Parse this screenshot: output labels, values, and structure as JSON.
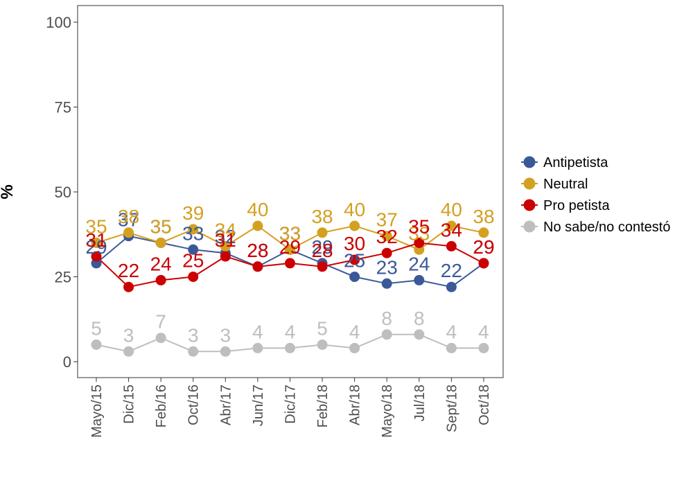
{
  "chart_data": {
    "type": "line",
    "title": "",
    "xlabel": "",
    "ylabel": "%",
    "ylim": [
      0,
      100
    ],
    "yticks": [
      0,
      25,
      50,
      75,
      100
    ],
    "grid": false,
    "legend_placement": "right",
    "categories": [
      "Mayo/15",
      "Dic/15",
      "Feb/16",
      "Oct/16",
      "Abr/17",
      "Jun/17",
      "Dic/17",
      "Feb/18",
      "Abr/18",
      "Mayo/18",
      "Jul/18",
      "Sept/18",
      "Oct/18"
    ],
    "series": [
      {
        "name": "Antipetista",
        "color": "#3b5998",
        "values": [
          29,
          37,
          35,
          33,
          32,
          28,
          33,
          29,
          25,
          23,
          24,
          22,
          29
        ]
      },
      {
        "name": "Neutral",
        "color": "#d4a020",
        "values": [
          35,
          38,
          35,
          39,
          34,
          40,
          33,
          38,
          40,
          37,
          33,
          40,
          38
        ]
      },
      {
        "name": "Pro petista",
        "color": "#cc0000",
        "values": [
          31,
          22,
          24,
          25,
          31,
          28,
          29,
          28,
          30,
          32,
          35,
          34,
          29
        ]
      },
      {
        "name": "No sabe/no contestó",
        "color": "#bebebe",
        "values": [
          5,
          3,
          7,
          3,
          3,
          4,
          4,
          5,
          4,
          8,
          8,
          4,
          4
        ]
      }
    ]
  }
}
